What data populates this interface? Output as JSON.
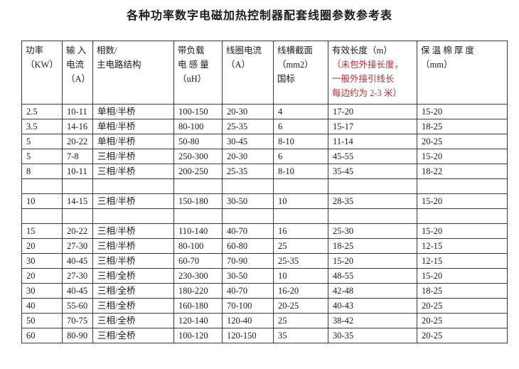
{
  "title": "各种功率数字电磁加热控制器配套线圈参数参考表",
  "colors": {
    "note_red": "#c03030",
    "text": "#1c1c1c",
    "border": "#3a3a3a",
    "background": "#ffffff"
  },
  "table": {
    "headers": [
      {
        "text": "功率\n（KW）"
      },
      {
        "text": "输 入\n电流\n（A）"
      },
      {
        "text": "相数/\n主电路结构"
      },
      {
        "text": "带负载\n电 感 量\n（uH）"
      },
      {
        "text": "线圈电流\n（A）"
      },
      {
        "text": "线横截面\n（mm2）\n国标"
      },
      {
        "text": "有效长度（m）",
        "note": "（未包外接长度，\n一般外接引线长\n每边约为 2-3 米）"
      },
      {
        "text": "保 温 棉 厚 度\n（mm）"
      }
    ],
    "rows": [
      [
        "2.5",
        "10-11",
        "单相/半桥",
        "100-150",
        "20-30",
        "4",
        "17-20",
        "15-20"
      ],
      [
        "3.5",
        "14-16",
        "单相/半桥",
        "80-100",
        "25-35",
        "6",
        "15-17",
        "18-25"
      ],
      [
        "5",
        "20-22",
        "单相/半桥",
        "50-80",
        "30-45",
        "8-10",
        "11-14",
        "20-25"
      ],
      [
        "5",
        "7-8",
        "三相/半桥",
        "250-300",
        "20-30",
        "6",
        "45-55",
        "15-20"
      ],
      [
        "8",
        "10-11",
        "三相/半桥",
        "200-250",
        "25-35",
        "8-10",
        "35-45",
        "18-22"
      ],
      [
        "",
        "",
        "",
        "",
        "",
        "",
        "",
        ""
      ],
      [
        "10",
        "14-15",
        "三相/半桥",
        "150-180",
        "30-50",
        "10",
        "28-35",
        "15-20"
      ],
      [
        "",
        "",
        "",
        "",
        "",
        "",
        "",
        ""
      ],
      [
        "15",
        "20-22",
        "三相/半桥",
        "110-140",
        "40-70",
        "16",
        "25-30",
        "15-20"
      ],
      [
        "20",
        "27-30",
        "三相/半桥",
        "80-100",
        "60-80",
        "25",
        "18-25",
        "12-15"
      ],
      [
        "30",
        "40-45",
        "三相/半桥",
        "60-70",
        "70-90",
        "25-35",
        "15-20",
        "12-15"
      ],
      [
        "20",
        "27-30",
        "三相/全桥",
        "230-300",
        "30-50",
        "10",
        "48-55",
        "15-20"
      ],
      [
        "30",
        "40-45",
        "三相/全桥",
        "180-220",
        "40-70",
        "16-20",
        "42-48",
        "18-25"
      ],
      [
        "40",
        "55-60",
        "三相/全桥",
        "160-180",
        "70-100",
        "20-25",
        "40-43",
        "20-25"
      ],
      [
        "50",
        "70-75",
        "三相/全桥",
        "120-140",
        "120-40",
        "25",
        "38-42",
        "20-25"
      ],
      [
        "60",
        "80-90",
        "三相/全桥",
        "100-120",
        "120-150",
        "35",
        "30-35",
        "20-25"
      ]
    ]
  }
}
